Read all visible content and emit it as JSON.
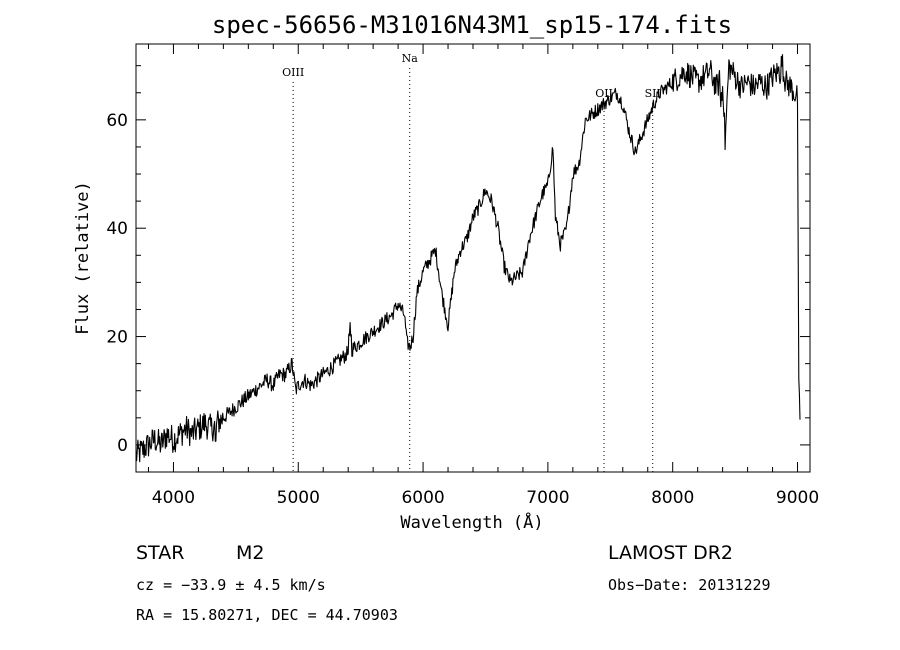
{
  "chart_data": {
    "type": "line",
    "title": "spec-56656-M31016N43M1_sp15-174.fits",
    "xlabel": "Wavelength (Å)",
    "ylabel": "Flux (relative)",
    "xlim": [
      3700,
      9100
    ],
    "ylim": [
      -5,
      74
    ],
    "xticks": [
      4000,
      5000,
      6000,
      7000,
      8000,
      9000
    ],
    "yticks": [
      0,
      20,
      40,
      60
    ],
    "grid": false,
    "line_markers": [
      {
        "label": "OIII",
        "x": 4959
      },
      {
        "label": "Na",
        "x": 5893
      },
      {
        "label": "OII",
        "x": 7450
      },
      {
        "label": "SII",
        "x": 7840
      }
    ],
    "series": [
      {
        "x": [
          3700,
          3750,
          3800,
          3850,
          3900,
          3950,
          4000,
          4050,
          4100,
          4150,
          4200,
          4250,
          4300,
          4350,
          4400,
          4450,
          4500,
          4550,
          4600,
          4650,
          4700,
          4750,
          4800,
          4850,
          4900,
          4950,
          4980,
          5000,
          5050,
          5100,
          5150,
          5200,
          5250,
          5300,
          5350,
          5400,
          5450,
          5500,
          5550,
          5600,
          5650,
          5700,
          5750,
          5800,
          5850,
          5870,
          5895,
          5920,
          5950,
          6000,
          6050,
          6100,
          6150,
          6200,
          6250,
          6300,
          6350,
          6400,
          6450,
          6500,
          6550,
          6600,
          6650,
          6700,
          6750,
          6800,
          6850,
          6900,
          6950,
          7000,
          7040,
          7060,
          7100,
          7150,
          7200,
          7250,
          7300,
          7350,
          7400,
          7450,
          7500,
          7550,
          7600,
          7650,
          7700,
          7750,
          7800,
          7850,
          7900,
          7950,
          8000,
          8050,
          8100,
          8150,
          8200,
          8250,
          8300,
          8350,
          8400,
          8420,
          8450,
          8500,
          8550,
          8600,
          8650,
          8700,
          8750,
          8800,
          8850,
          8900,
          8950,
          9000,
          9010,
          9020
        ],
        "y": [
          -2,
          -1,
          0,
          1,
          0,
          2,
          1,
          2,
          3,
          2,
          3,
          4,
          3,
          4,
          5,
          6,
          7,
          8,
          9,
          10,
          11,
          12,
          11,
          13,
          13,
          15,
          10,
          11,
          12,
          11,
          12,
          13,
          14,
          15,
          16,
          17,
          18,
          19,
          20,
          21,
          22,
          23,
          24,
          26,
          24,
          19,
          18,
          20,
          28,
          32,
          34,
          36,
          28,
          22,
          32,
          36,
          38,
          42,
          44,
          47,
          45,
          40,
          33,
          30,
          31,
          32,
          38,
          42,
          46,
          48,
          55,
          42,
          37,
          40,
          50,
          52,
          60,
          61,
          62,
          63,
          64,
          65,
          63,
          58,
          54,
          57,
          60,
          63,
          65,
          66,
          67,
          68,
          69,
          68,
          67,
          68,
          69,
          66,
          68,
          56,
          70,
          68,
          66,
          67,
          66,
          67,
          66,
          68,
          69,
          67,
          66,
          64,
          10,
          5
        ]
      }
    ]
  },
  "info": {
    "object_class": "STAR",
    "subclass": "M2",
    "survey": "LAMOST DR2",
    "cz": "cz = −33.9 ± 4.5 km/s",
    "obs_date": "Obs−Date: 20131229",
    "coords": "RA =  15.80271, DEC =  44.70903"
  }
}
